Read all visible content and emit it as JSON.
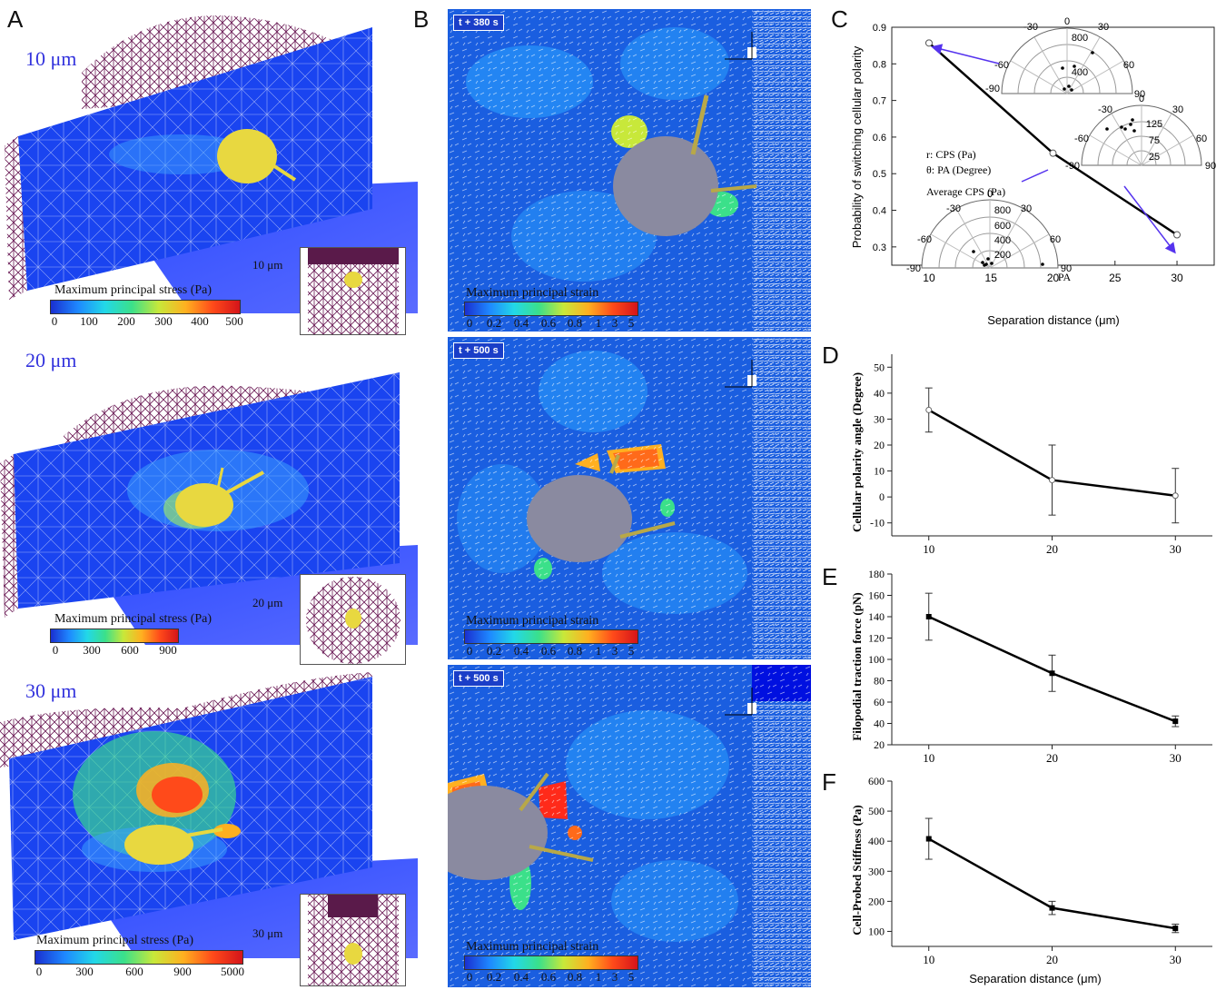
{
  "panel_labels": {
    "a": "A",
    "b": "B",
    "c": "C",
    "d": "D",
    "e": "E",
    "f": "F"
  },
  "panel_a": {
    "rows": [
      {
        "distance": "10 μm",
        "inset_scale": "10 μm",
        "cbar_title": "Maximum principal stress (Pa)",
        "ticks": [
          "0",
          "100",
          "200",
          "300",
          "400",
          "500"
        ]
      },
      {
        "distance": "20 μm",
        "inset_scale": "20 μm",
        "cbar_title": "Maximum principal stress (Pa)",
        "ticks": [
          "0",
          "300",
          "600",
          "900"
        ]
      },
      {
        "distance": "30 μm",
        "inset_scale": "30 μm",
        "cbar_title": "Maximum principal stress (Pa)",
        "ticks": [
          "0",
          "300",
          "600",
          "900",
          "5000"
        ]
      }
    ]
  },
  "panel_b": {
    "rows": [
      {
        "time": "t + 380 s",
        "cbar_title": "Maximum principal strain",
        "ticks": [
          "0",
          "0.2",
          "0.4",
          "0.6",
          "0.8",
          "1",
          "3",
          "5"
        ]
      },
      {
        "time": "t + 500 s",
        "cbar_title": "Maximum principal strain",
        "ticks": [
          "0",
          "0.2",
          "0.4",
          "0.6",
          "0.8",
          "1",
          "3",
          "5"
        ]
      },
      {
        "time": "t + 500 s",
        "cbar_title": "Maximum principal strain",
        "ticks": [
          "0",
          "0.2",
          "0.4",
          "0.6",
          "0.8",
          "1",
          "3",
          "5"
        ]
      }
    ]
  },
  "colors": {
    "stress_gradient": [
      "#1a2fd0",
      "#1e88ff",
      "#22d8e8",
      "#3be08a",
      "#c8e83a",
      "#ffb020",
      "#ff4a1a",
      "#d4141a"
    ],
    "cell": "#e8d840",
    "membrane": "#5a1a4a",
    "arrow": "#5533ee"
  },
  "chart_data": [
    {
      "type": "line",
      "panel": "C",
      "x": [
        10,
        20,
        30
      ],
      "y": [
        0.857,
        0.556,
        0.333
      ],
      "xlabel": "Separation distance (μm)",
      "ylabel": "Probability of switching cellular polarity",
      "xlim": [
        7,
        33
      ],
      "ylim": [
        0.25,
        0.9
      ],
      "xticks": [
        "10",
        "15",
        "20",
        "25",
        "30"
      ],
      "yticks": [
        "0.3",
        "0.4",
        "0.5",
        "0.6",
        "0.7",
        "0.8",
        "0.9"
      ],
      "annotations": [
        "r: CPS (Pa)",
        "θ: PA (Degree)",
        "Average CPS (Pa)",
        "PA"
      ],
      "polar_insets": [
        {
          "ring_labels": [
            "800",
            "400"
          ],
          "angle_labels": [
            "-30",
            "0",
            "30",
            "-60",
            "60",
            "-90",
            "90"
          ]
        },
        {
          "ring_labels": [
            "125",
            "75",
            "25"
          ],
          "angle_labels": [
            "-30",
            "0",
            "30",
            "-60",
            "60",
            "-90",
            "90"
          ]
        },
        {
          "ring_labels": [
            "800",
            "600",
            "400",
            "200"
          ],
          "angle_labels": [
            "-30",
            "0",
            "30",
            "-60",
            "60",
            "-90",
            "90"
          ]
        }
      ]
    },
    {
      "type": "line",
      "panel": "D",
      "x": [
        10,
        20,
        30
      ],
      "y": [
        33.5,
        6.5,
        0.5
      ],
      "err": [
        8.5,
        13.5,
        10.5
      ],
      "xlabel": "",
      "ylabel": "Cellular polarity angle (Degree)",
      "ylim": [
        -15,
        55
      ],
      "xticks": [
        "10",
        "20",
        "30"
      ],
      "yticks": [
        "-10",
        "0",
        "10",
        "20",
        "30",
        "40",
        "50"
      ]
    },
    {
      "type": "line",
      "panel": "E",
      "x": [
        10,
        20,
        30
      ],
      "y": [
        140,
        87,
        42
      ],
      "err": [
        22,
        17,
        5
      ],
      "xlabel": "",
      "ylabel": "Filopodial traction force (pN)",
      "ylim": [
        20,
        180
      ],
      "xticks": [
        "10",
        "20",
        "30"
      ],
      "yticks": [
        "20",
        "40",
        "60",
        "80",
        "100",
        "120",
        "140",
        "160",
        "180"
      ]
    },
    {
      "type": "line",
      "panel": "F",
      "x": [
        10,
        20,
        30
      ],
      "y": [
        408,
        178,
        110
      ],
      "err": [
        68,
        22,
        14
      ],
      "xlabel": "Separation distance (μm)",
      "ylabel": "Cell-Probed Stiffness (Pa)",
      "ylim": [
        50,
        600
      ],
      "xticks": [
        "10",
        "20",
        "30"
      ],
      "yticks": [
        "100",
        "200",
        "300",
        "400",
        "500",
        "600"
      ]
    }
  ]
}
